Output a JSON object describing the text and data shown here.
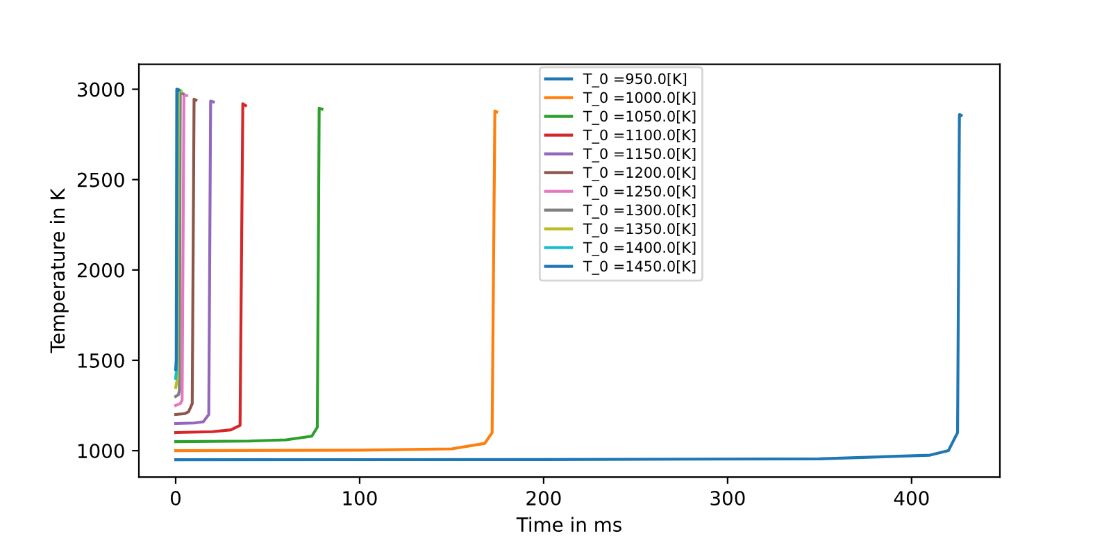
{
  "chart_data": {
    "type": "line",
    "xlabel": "Time in ms",
    "ylabel": "Temperature in K",
    "xlim": [
      -20,
      448
    ],
    "ylim": [
      854,
      3138
    ],
    "xticks": [
      0,
      100,
      200,
      300,
      400
    ],
    "yticks": [
      1000,
      1500,
      2000,
      2500,
      3000
    ],
    "grid": false,
    "legend": "top",
    "marker": "none",
    "line_style": "solid",
    "series": [
      {
        "name": "T_0 =950.0[K]",
        "color": "#1f77b4",
        "x": [
          0,
          200,
          350,
          410,
          420,
          425,
          426,
          427
        ],
        "values": [
          950,
          951,
          955,
          975,
          1000,
          1100,
          2860,
          2855
        ]
      },
      {
        "name": "T_0 =1000.0[K]",
        "color": "#ff7f0e",
        "x": [
          0,
          100,
          150,
          168,
          172,
          173.5,
          174.5
        ],
        "values": [
          1000,
          1003,
          1010,
          1040,
          1100,
          2880,
          2875
        ]
      },
      {
        "name": "T_0 =1050.0[K]",
        "color": "#2ca02c",
        "x": [
          0,
          40,
          60,
          74,
          77,
          78,
          79.5
        ],
        "values": [
          1050,
          1053,
          1060,
          1080,
          1130,
          2895,
          2890
        ]
      },
      {
        "name": "T_0 =1100.0[K]",
        "color": "#d62728",
        "x": [
          0,
          20,
          30,
          35,
          36.5,
          38
        ],
        "values": [
          1100,
          1105,
          1115,
          1140,
          2920,
          2910
        ]
      },
      {
        "name": "T_0 =1150.0[K]",
        "color": "#9467bd",
        "x": [
          0,
          10,
          15,
          18,
          19,
          20.5
        ],
        "values": [
          1150,
          1153,
          1160,
          1200,
          2935,
          2930
        ]
      },
      {
        "name": "T_0 =1200.0[K]",
        "color": "#8c564b",
        "x": [
          0,
          5,
          7,
          9,
          10,
          11
        ],
        "values": [
          1200,
          1205,
          1215,
          1260,
          2945,
          2940
        ]
      },
      {
        "name": "T_0 =1250.0[K]",
        "color": "#e377c2",
        "x": [
          0,
          2.5,
          3.5,
          4.5,
          6
        ],
        "values": [
          1250,
          1260,
          1280,
          2970,
          2965
        ]
      },
      {
        "name": "T_0 =1300.0[K]",
        "color": "#7f7f7f",
        "x": [
          0,
          1.5,
          2,
          2.5,
          4
        ],
        "values": [
          1300,
          1310,
          1330,
          2980,
          2975
        ]
      },
      {
        "name": "T_0 =1350.0[K]",
        "color": "#bcbd22",
        "x": [
          0,
          1,
          1.5,
          3
        ],
        "values": [
          1350,
          1400,
          3000,
          2990
        ]
      },
      {
        "name": "T_0 =1400.0[K]",
        "color": "#17becf",
        "x": [
          0,
          0.5,
          1,
          2
        ],
        "values": [
          1400,
          1450,
          3000,
          2995
        ]
      },
      {
        "name": "T_0 =1450.0[K]",
        "color": "#1f77b4",
        "x": [
          0,
          0.3,
          0.6,
          1.5
        ],
        "values": [
          1450,
          1500,
          3000,
          2995
        ]
      }
    ]
  }
}
